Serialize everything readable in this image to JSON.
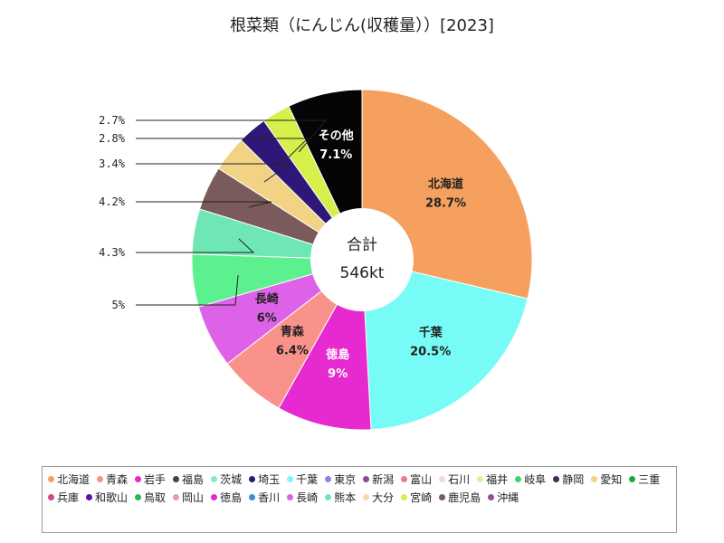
{
  "chart_data": {
    "type": "pie",
    "title": "根菜類（にんじん(収穫量））[2023]",
    "center": {
      "line1": "合計",
      "line2": "546kt"
    },
    "slices": [
      {
        "name": "北海道",
        "label": "北海道\n28.7%",
        "value": 28.7,
        "color": "#f5a05e",
        "label_color": "#222222",
        "inside": true
      },
      {
        "name": "千葉",
        "label": "千葉\n20.5%",
        "value": 20.5,
        "color": "#77fbf6",
        "label_color": "#222222",
        "inside": true
      },
      {
        "name": "徳島",
        "label": "徳島\n9%",
        "value": 9.0,
        "color": "#e62ad0",
        "label_color": "#ffffff",
        "inside": true
      },
      {
        "name": "青森",
        "label": "青森\n6.4%",
        "value": 6.4,
        "color": "#f8928a",
        "label_color": "#222222",
        "inside": true
      },
      {
        "name": "長崎",
        "label": "長崎\n6%",
        "value": 6.0,
        "color": "#de62e8",
        "label_color": "#222222",
        "inside": true
      },
      {
        "name": "岐阜",
        "label": "5%",
        "value": 5.0,
        "color": "#5cf08e",
        "label_color": "#222222",
        "inside": false
      },
      {
        "name": "熊本",
        "label": "4.3%",
        "value": 4.3,
        "color": "#6fe7b4",
        "label_color": "#222222",
        "inside": false
      },
      {
        "name": "鹿児島",
        "label": "4.2%",
        "value": 4.2,
        "color": "#7a5a5a",
        "label_color": "#222222",
        "inside": false
      },
      {
        "name": "愛知",
        "label": "3.4%",
        "value": 3.4,
        "color": "#f2d386",
        "label_color": "#222222",
        "inside": false
      },
      {
        "name": "埼玉",
        "label": "2.8%",
        "value": 2.8,
        "color": "#2e1778",
        "label_color": "#222222",
        "inside": false
      },
      {
        "name": "宮崎",
        "label": "2.7%",
        "value": 2.7,
        "color": "#d6ef4a",
        "label_color": "#222222",
        "inside": false
      },
      {
        "name": "その他",
        "label": "その他\n7.1%",
        "value": 7.1,
        "color": "#050505",
        "label_color": "#ffffff",
        "inside": true
      }
    ],
    "legend": [
      {
        "name": "北海道",
        "color": "#f5a05e"
      },
      {
        "name": "青森",
        "color": "#f8928a"
      },
      {
        "name": "岩手",
        "color": "#e62ad0"
      },
      {
        "name": "福島",
        "color": "#5a3a3a"
      },
      {
        "name": "茨城",
        "color": "#8ee8c0"
      },
      {
        "name": "埼玉",
        "color": "#2e1778"
      },
      {
        "name": "千葉",
        "color": "#77fbf6"
      },
      {
        "name": "東京",
        "color": "#8a85e6"
      },
      {
        "name": "新潟",
        "color": "#8a4a9a"
      },
      {
        "name": "富山",
        "color": "#f07a8a"
      },
      {
        "name": "石川",
        "color": "#f6d8dc"
      },
      {
        "name": "福井",
        "color": "#dcef9a"
      },
      {
        "name": "岐阜",
        "color": "#3ed66a"
      },
      {
        "name": "静岡",
        "color": "#4a2a5a"
      },
      {
        "name": "愛知",
        "color": "#f2d386"
      },
      {
        "name": "三重",
        "color": "#1ea83e"
      },
      {
        "name": "兵庫",
        "color": "#c84a8a"
      },
      {
        "name": "和歌山",
        "color": "#6a0ab0"
      },
      {
        "name": "鳥取",
        "color": "#2cb65a"
      },
      {
        "name": "岡山",
        "color": "#e0a0b0"
      },
      {
        "name": "徳島",
        "color": "#e62ad0"
      },
      {
        "name": "香川",
        "color": "#3a8ae0"
      },
      {
        "name": "長崎",
        "color": "#de62e8"
      },
      {
        "name": "熊本",
        "color": "#6fe7b4"
      },
      {
        "name": "大分",
        "color": "#f8d8b0"
      },
      {
        "name": "宮崎",
        "color": "#d6ef4a"
      },
      {
        "name": "鹿児島",
        "color": "#7a5a5a"
      },
      {
        "name": "沖縄",
        "color": "#9a4a9a"
      }
    ]
  }
}
